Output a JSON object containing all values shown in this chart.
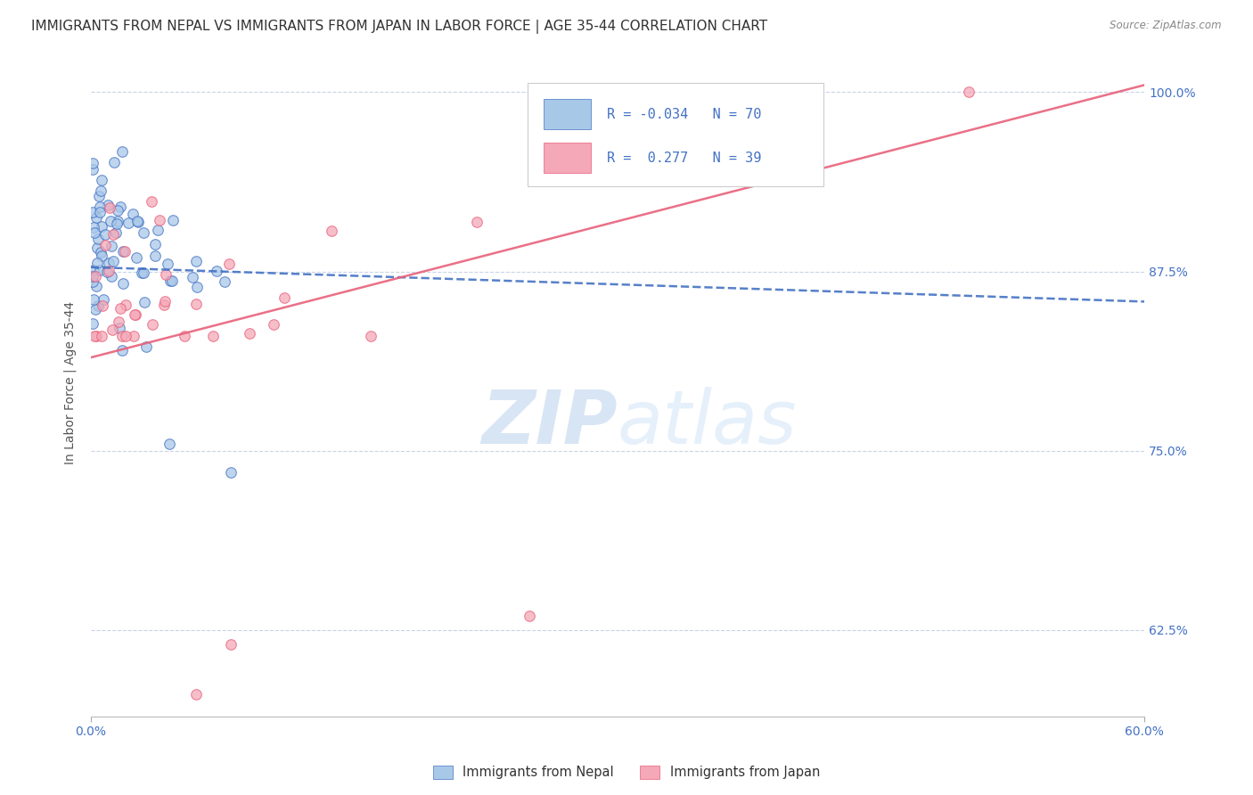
{
  "title": "IMMIGRANTS FROM NEPAL VS IMMIGRANTS FROM JAPAN IN LABOR FORCE | AGE 35-44 CORRELATION CHART",
  "source": "Source: ZipAtlas.com",
  "ylabel": "In Labor Force | Age 35-44",
  "xlim": [
    0.0,
    0.6
  ],
  "ylim": [
    0.565,
    1.03
  ],
  "xtick_labels_bottom": [
    "0.0%",
    "60.0%"
  ],
  "xtick_vals_bottom": [
    0.0,
    0.6
  ],
  "ytick_labels": [
    "62.5%",
    "75.0%",
    "87.5%",
    "100.0%"
  ],
  "ytick_vals": [
    0.625,
    0.75,
    0.875,
    1.0
  ],
  "nepal_color": "#a8c8e8",
  "japan_color": "#f4a8b8",
  "nepal_line_color": "#4472c4",
  "japan_line_color": "#e8607a",
  "R_nepal": -0.034,
  "N_nepal": 70,
  "R_japan": 0.277,
  "N_japan": 39,
  "background_color": "#ffffff",
  "grid_color": "#c8d4e8",
  "title_fontsize": 11,
  "axis_label_fontsize": 10,
  "tick_fontsize": 10,
  "legend_color": "#4472c4",
  "watermark_color": "#dce8f5"
}
